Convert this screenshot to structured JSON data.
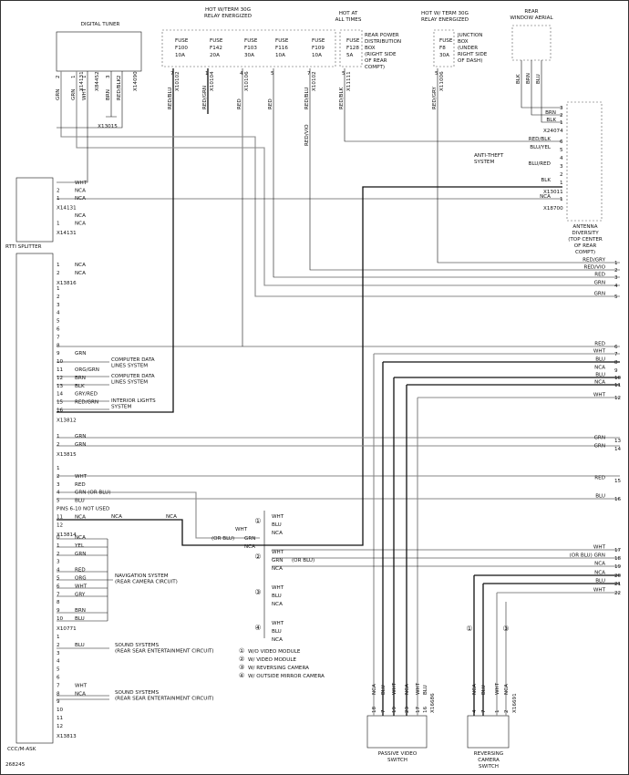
{
  "diagram_id": "268245",
  "components": {
    "digital_tuner": "DIGITAL TUNER",
    "rtti_splitter": "RTTI SPLITTER",
    "ccc": "CCC/M-ASK",
    "rear_window_aerial": [
      "REAR",
      "WINDOW AERIAL"
    ],
    "antenna": [
      "ANTENNA",
      "DIVERSITY",
      "(TOP CENTER",
      "OF REAR",
      "COMPT)"
    ],
    "anti_theft": [
      "ANTI-THEFT",
      "SYSTEM"
    ],
    "passive_video_switch": [
      "PASSIVE VIDEO",
      "SWITCH"
    ],
    "reversing_camera_switch": [
      "REVERSING",
      "CAMERA",
      "SWITCH"
    ],
    "rear_power_box": [
      "REAR POWER",
      "DISTRIBUTION",
      "BOX",
      "(RIGHT SIDE",
      "OF REAR",
      "COMPT)"
    ],
    "junction_box": [
      "JUNCTION",
      "BOX",
      "(UNDER",
      "RIGHT SIDE",
      "OF DASH)"
    ]
  },
  "power": {
    "relay_1": [
      "HOT W/TERM 30G",
      "RELAY ENERGIZED"
    ],
    "always": [
      "HOT AT",
      "ALL TIMES"
    ],
    "relay_2": [
      "HOT W/ TERM 30G",
      "RELAY ENERGIZED"
    ]
  },
  "fuses": [
    {
      "label": "FUSE",
      "id": "F100",
      "rating": "10A",
      "pin": "7",
      "wire": "RED/BLU",
      "connector": "X10102"
    },
    {
      "label": "FUSE",
      "id": "F142",
      "rating": "20A",
      "pin": "1",
      "wire": "RED/GRN",
      "connector": "X10104"
    },
    {
      "label": "FUSE",
      "id": "F103",
      "rating": "30A",
      "pin": "4",
      "wire": "RED",
      "connector": "X10106"
    },
    {
      "label": "FUSE",
      "id": "F116",
      "rating": "10A",
      "pin": "5",
      "wire": "RED"
    },
    {
      "label": "FUSE",
      "id": "F109",
      "rating": "10A",
      "pin": "7",
      "wire": "RED/BLU",
      "connector": "X10102"
    },
    {
      "label": "FUSE",
      "id": "F128",
      "rating": "5A",
      "pin": "5",
      "wire": "RED/BLK",
      "connector": "X11111"
    },
    {
      "label": "FUSE",
      "id": "F8",
      "rating": "30A",
      "pin": "5",
      "wire": "RED/GRY",
      "connector": "X11006"
    }
  ],
  "splice_wire": "RED/VIO",
  "tuner_wires": [
    {
      "pin": "2",
      "wire": "GRN"
    },
    {
      "pin": "1",
      "wire": "GRN"
    },
    {
      "pin": "1",
      "wire": "WHT"
    },
    {
      "pin": "3",
      "wire": "BRN"
    },
    {
      "pin": "2",
      "wire": "RED/BLK"
    }
  ],
  "tuner_connectors": [
    "X14131",
    "X84452",
    "X14090"
  ],
  "ground_connector": "X13015",
  "aerial": {
    "wires": [
      "BLK",
      "BRN",
      "BLU"
    ],
    "pins": [
      {
        "pin": "3"
      },
      {
        "pin": "2",
        "wire": "BRN"
      },
      {
        "pin": "1",
        "wire": "BLK"
      }
    ],
    "connector": "X24074"
  },
  "antenna_pins": {
    "rows": [
      {
        "wire": "RED/BLK",
        "pin": "6"
      },
      {
        "wire": "BLU/YEL",
        "pin": "5"
      },
      {
        "pin": "4"
      },
      {
        "wire": "BLU/RED",
        "pin": "3"
      },
      {
        "pin": "2"
      },
      {
        "wire": "BLK",
        "pin": "1"
      }
    ],
    "connector": "X13011",
    "nca": {
      "wire": "NCA",
      "pin": "1"
    },
    "nca_connector": "X18700"
  },
  "splitter_blocks": [
    {
      "connector": "X14131",
      "rows": [
        {
          "wire": "WHT"
        },
        {
          "pin": "2",
          "wire": "NCA"
        },
        {
          "pin": "1",
          "wire": "NCA"
        }
      ]
    },
    {
      "connector": "X14131",
      "rows": [
        {
          "wire": "NCA"
        },
        {
          "pin": "1",
          "wire": "NCA"
        }
      ]
    }
  ],
  "pin_blocks": [
    {
      "connector": "X13816",
      "rows": [
        {
          "pin": "1",
          "wire": "NCA"
        },
        {
          "pin": "2",
          "wire": "NCA"
        }
      ]
    },
    {
      "connector": "X13812",
      "rows": [
        {
          "pin": "1"
        },
        {
          "pin": "2"
        },
        {
          "pin": "3"
        },
        {
          "pin": "4"
        },
        {
          "pin": "5"
        },
        {
          "pin": "6"
        },
        {
          "pin": "7"
        },
        {
          "pin": "8"
        },
        {
          "pin": "9",
          "wire": "GRN"
        },
        {
          "pin": "10"
        },
        {
          "pin": "11",
          "wire": "ORG/GRN"
        },
        {
          "pin": "12",
          "wire": "BRN"
        },
        {
          "pin": "13",
          "wire": "BLK"
        },
        {
          "pin": "14",
          "wire": "GRY/RED"
        },
        {
          "pin": "15",
          "wire": "RED/GRN"
        },
        {
          "pin": "16"
        }
      ]
    },
    {
      "connector": "X13815",
      "rows": [
        {
          "pin": "1",
          "wire": "GRN"
        },
        {
          "pin": "2",
          "wire": "GRN"
        }
      ]
    },
    {
      "connector": "X13814",
      "rows": [
        {
          "pin": "1"
        },
        {
          "pin": "2",
          "wire": "WHT"
        },
        {
          "pin": "3",
          "wire": "RED"
        },
        {
          "pin": "4",
          "wire": "GRN (OR BLU)"
        },
        {
          "pin": "5",
          "wire": "BLU"
        },
        {
          "pin": "PINS 6-10 NOT USED"
        },
        {
          "pin": "11",
          "wire": "NCA"
        },
        {
          "pin": "12"
        }
      ]
    },
    {
      "connector": "X10771",
      "rows": [
        {
          "pin": "0",
          "wire": "NCA"
        },
        {
          "pin": "1",
          "wire": "YEL"
        },
        {
          "pin": "2",
          "wire": "GRN"
        },
        {
          "pin": "3"
        },
        {
          "pin": "4",
          "wire": "RED"
        },
        {
          "pin": "5",
          "wire": "ORG"
        },
        {
          "pin": "6",
          "wire": "WHT"
        },
        {
          "pin": "7",
          "wire": "GRY"
        },
        {
          "pin": "8"
        },
        {
          "pin": "9",
          "wire": "BRN"
        },
        {
          "pin": "10",
          "wire": "BLU"
        }
      ]
    },
    {
      "connector": "X13813",
      "rows": [
        {
          "pin": "1"
        },
        {
          "pin": "2",
          "wire": "BLU"
        },
        {
          "pin": "3"
        },
        {
          "pin": "4"
        },
        {
          "pin": "5"
        },
        {
          "pin": "6"
        },
        {
          "pin": "7",
          "wire": "WHT"
        },
        {
          "pin": "8",
          "wire": "NCA"
        },
        {
          "pin": "9"
        },
        {
          "pin": "10"
        },
        {
          "pin": "11"
        },
        {
          "pin": "12"
        }
      ]
    }
  ],
  "splice_labels": [
    "NCA",
    "NCA"
  ],
  "systems": [
    [
      "COMPUTER DATA",
      "LINES SYSTEM"
    ],
    [
      "COMPUTER DATA",
      "LINES SYSTEM"
    ],
    [
      "INTERIOR LIGHTS",
      "SYSTEM"
    ],
    [
      "NAVIGATION SYSTEM",
      "(REAR CAMERA CIRCUIT)"
    ],
    [
      "SOUND SYSTEMS",
      "(REAR SEAR ENTERTAINMENT CIRCUIT)"
    ],
    [
      "SOUND SYSTEMS",
      "(REAR SEAR ENTERTAINMENT CIRCUIT)"
    ]
  ],
  "right_terminals": [
    {
      "number": "1",
      "wire": "RED/GRY"
    },
    {
      "number": "2",
      "wire": "RED/VIO"
    },
    {
      "number": "3",
      "wire": "RED"
    },
    {
      "number": "4",
      "wire": "GRN"
    },
    {
      "number": "5",
      "wire": "GRN"
    },
    {
      "number": "6",
      "wire": "RED"
    },
    {
      "number": "7",
      "wire": "WHT"
    },
    {
      "number": "8",
      "wire": "BLU"
    },
    {
      "number": "9",
      "wire": "NCA"
    },
    {
      "number": "10",
      "wire": "BLU"
    },
    {
      "number": "11",
      "wire": "NCA"
    },
    {
      "number": "12",
      "wire": "WHT"
    },
    {
      "number": "13",
      "wire": "GRN"
    },
    {
      "number": "14",
      "wire": "GRN"
    },
    {
      "number": "15",
      "wire": "RED"
    },
    {
      "number": "16",
      "wire": "BLU"
    },
    {
      "number": "17",
      "wire": "WHT"
    },
    {
      "number": "18",
      "wire": "(OR BLU)  GRN"
    },
    {
      "number": "19",
      "wire": "NCA"
    },
    {
      "number": "20",
      "wire": "NCA"
    },
    {
      "number": "21",
      "wire": "BLU"
    },
    {
      "number": "22",
      "wire": "WHT"
    }
  ],
  "crossover_labels": [
    "WHT",
    "(OR BLU)",
    "GRN",
    "NCA"
  ],
  "video_groups": [
    {
      "mark": "①",
      "wires": [
        "WHT",
        "BLU",
        "NCA"
      ]
    },
    {
      "mark": "②",
      "wires": [
        "WHT",
        "GRN",
        "NCA"
      ],
      "note": "(OR BLU)"
    },
    {
      "mark": "③",
      "wires": [
        "WHT",
        "BLU",
        "NCA"
      ]
    },
    {
      "mark": "④",
      "wires": [
        "WHT",
        "BLU",
        "NCA"
      ]
    }
  ],
  "notes": [
    {
      "mark": "①",
      "text": "W/O VIDEO MODULE"
    },
    {
      "mark": "②",
      "text": "W/ VIDEO MODULE"
    },
    {
      "mark": "③",
      "text": "W/ REVERSING CAMERA"
    },
    {
      "mark": "④",
      "text": "W/ OUTSIDE MIRROR CAMERA"
    }
  ],
  "passive_switch": {
    "pins": [
      "18",
      "7",
      "19",
      "23",
      "17",
      "16"
    ],
    "wires": [
      "NCA",
      "BLU",
      "WHT",
      "NCA",
      "WHT",
      "BLU"
    ],
    "connector": "X16686"
  },
  "camera_switch": {
    "pins": [
      "4",
      "7",
      "1",
      "2"
    ],
    "wires": [
      "NCA",
      "BLU",
      "WHT",
      "NCA"
    ],
    "connector": "X16691",
    "marks": [
      "①",
      "③"
    ]
  }
}
